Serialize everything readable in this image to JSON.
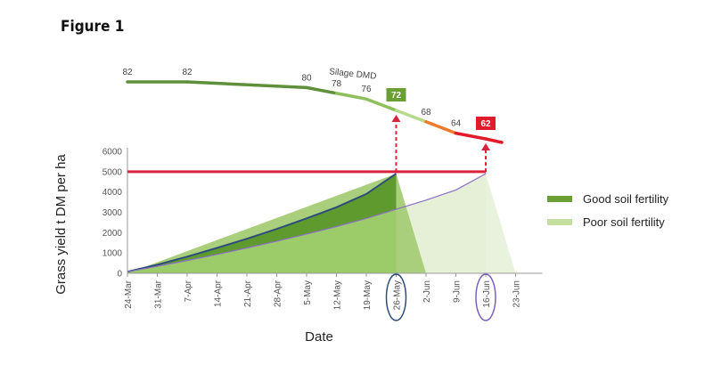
{
  "figure": {
    "title": "Figure 1"
  },
  "chart_data": {
    "type": "area",
    "xlabel": "Date",
    "ylabel": "Grass yield t DM per ha",
    "ylim": [
      0,
      6000
    ],
    "yticks": [
      0,
      1000,
      2000,
      3000,
      4000,
      5000,
      6000
    ],
    "categories": [
      "24-Mar",
      "31-Mar",
      "7-Apr",
      "14-Apr",
      "21-Apr",
      "28-Apr",
      "5-May",
      "12-May",
      "19-May",
      "26-May",
      "2-Jun",
      "9-Jun",
      "16-Jun",
      "23-Jun"
    ],
    "circled_dates": [
      "26-May",
      "16-Jun"
    ],
    "grid": false,
    "legend": "right",
    "series": [
      {
        "name": "Good soil fertility",
        "color": "#6aa033",
        "values": [
          80,
          420,
          820,
          1250,
          1700,
          2180,
          2700,
          3250,
          3900,
          4900,
          0,
          null,
          null,
          null
        ]
      },
      {
        "name": "Poor soil fertility",
        "color": "#c4dfa0",
        "values": [
          80,
          340,
          630,
          930,
          1250,
          1580,
          1930,
          2300,
          2700,
          3150,
          3600,
          4100,
          4900,
          0
        ]
      }
    ],
    "target_line": {
      "value": 5000,
      "color": "#d9223b",
      "from": "24-Mar",
      "to": "16-Jun"
    },
    "silage_dmd": {
      "label": "Silage DMD",
      "points": [
        {
          "date": "24-Mar",
          "value": 82
        },
        {
          "date": "7-Apr",
          "value": 82
        },
        {
          "date": "5-May",
          "value": 80
        },
        {
          "date": "12-May",
          "value": 78
        },
        {
          "date": "19-May",
          "value": 76
        },
        {
          "date": "26-May",
          "value": 72,
          "highlight": "#6aa033"
        },
        {
          "date": "2-Jun",
          "value": 68
        },
        {
          "date": "9-Jun",
          "value": 64
        },
        {
          "date": "16-Jun",
          "value": 62,
          "highlight": "#e11b2b"
        }
      ]
    }
  }
}
